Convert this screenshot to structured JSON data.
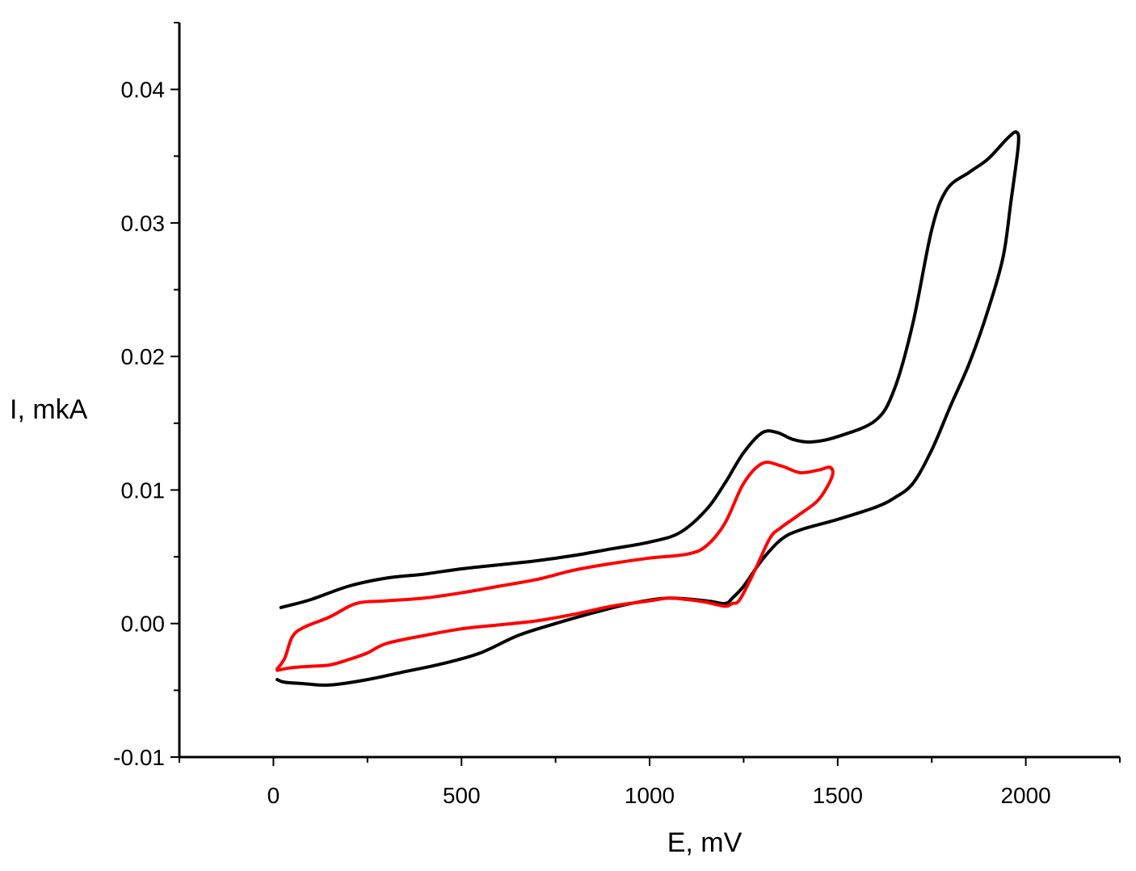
{
  "chart_data": {
    "type": "line",
    "title": "",
    "xlabel": "E, mV",
    "ylabel": "I, mkA",
    "xlim": [
      -250,
      2250
    ],
    "ylim": [
      -0.01,
      0.045
    ],
    "x_ticks": [
      0,
      500,
      1000,
      1500,
      2000
    ],
    "x_tick_labels": [
      "0",
      "500",
      "1000",
      "1500",
      "2000"
    ],
    "y_ticks": [
      -0.01,
      0.0,
      0.01,
      0.02,
      0.03,
      0.04
    ],
    "y_tick_labels": [
      "-0.01",
      "0.00",
      "0.01",
      "0.02",
      "0.03",
      "0.04"
    ],
    "grid": false,
    "legend": "none",
    "series": [
      {
        "color": "#000000",
        "points": [
          [
            20,
            0.0012
          ],
          [
            100,
            0.0018
          ],
          [
            200,
            0.0028
          ],
          [
            300,
            0.0034
          ],
          [
            400,
            0.0037
          ],
          [
            500,
            0.0041
          ],
          [
            600,
            0.0044
          ],
          [
            700,
            0.0047
          ],
          [
            800,
            0.0051
          ],
          [
            900,
            0.0056
          ],
          [
            1000,
            0.0061
          ],
          [
            1080,
            0.0068
          ],
          [
            1150,
            0.0085
          ],
          [
            1200,
            0.0105
          ],
          [
            1250,
            0.0128
          ],
          [
            1300,
            0.0143
          ],
          [
            1340,
            0.0143
          ],
          [
            1380,
            0.0138
          ],
          [
            1430,
            0.0136
          ],
          [
            1500,
            0.014
          ],
          [
            1600,
            0.0152
          ],
          [
            1650,
            0.0175
          ],
          [
            1700,
            0.0225
          ],
          [
            1750,
            0.0295
          ],
          [
            1790,
            0.0325
          ],
          [
            1850,
            0.0338
          ],
          [
            1900,
            0.0348
          ],
          [
            1950,
            0.0363
          ],
          [
            1975,
            0.0368
          ],
          [
            1980,
            0.0358
          ],
          [
            1960,
            0.0315
          ],
          [
            1940,
            0.0275
          ],
          [
            1900,
            0.0235
          ],
          [
            1850,
            0.0195
          ],
          [
            1800,
            0.0163
          ],
          [
            1750,
            0.013
          ],
          [
            1700,
            0.0105
          ],
          [
            1650,
            0.0094
          ],
          [
            1600,
            0.0087
          ],
          [
            1500,
            0.0078
          ],
          [
            1400,
            0.007
          ],
          [
            1350,
            0.0063
          ],
          [
            1300,
            0.0048
          ],
          [
            1250,
            0.0028
          ],
          [
            1220,
            0.0019
          ],
          [
            1200,
            0.0015
          ],
          [
            1150,
            0.0017
          ],
          [
            1050,
            0.0019
          ],
          [
            950,
            0.0015
          ],
          [
            850,
            0.0008
          ],
          [
            750,
            0.0
          ],
          [
            650,
            -0.0009
          ],
          [
            550,
            -0.0022
          ],
          [
            450,
            -0.003
          ],
          [
            350,
            -0.0036
          ],
          [
            250,
            -0.0042
          ],
          [
            150,
            -0.0046
          ],
          [
            80,
            -0.0045
          ],
          [
            30,
            -0.0044
          ],
          [
            10,
            -0.0042
          ]
        ]
      },
      {
        "color": "#ff0000",
        "points": [
          [
            10,
            -0.0034
          ],
          [
            30,
            -0.0026
          ],
          [
            50,
            -0.001
          ],
          [
            80,
            -0.0003
          ],
          [
            150,
            0.0005
          ],
          [
            220,
            0.0015
          ],
          [
            300,
            0.0017
          ],
          [
            400,
            0.0019
          ],
          [
            500,
            0.0023
          ],
          [
            600,
            0.0028
          ],
          [
            700,
            0.0033
          ],
          [
            800,
            0.004
          ],
          [
            900,
            0.0045
          ],
          [
            1000,
            0.0049
          ],
          [
            1100,
            0.0052
          ],
          [
            1150,
            0.0058
          ],
          [
            1200,
            0.0075
          ],
          [
            1250,
            0.0105
          ],
          [
            1300,
            0.012
          ],
          [
            1350,
            0.0118
          ],
          [
            1400,
            0.0113
          ],
          [
            1450,
            0.0115
          ],
          [
            1480,
            0.0117
          ],
          [
            1485,
            0.011
          ],
          [
            1450,
            0.0093
          ],
          [
            1400,
            0.0082
          ],
          [
            1350,
            0.0072
          ],
          [
            1320,
            0.0064
          ],
          [
            1280,
            0.004
          ],
          [
            1240,
            0.0018
          ],
          [
            1220,
            0.0015
          ],
          [
            1200,
            0.0013
          ],
          [
            1150,
            0.0016
          ],
          [
            1100,
            0.0018
          ],
          [
            1050,
            0.0019
          ],
          [
            1000,
            0.0017
          ],
          [
            900,
            0.0013
          ],
          [
            800,
            0.0007
          ],
          [
            700,
            0.0002
          ],
          [
            600,
            -0.0001
          ],
          [
            500,
            -0.0004
          ],
          [
            400,
            -0.0009
          ],
          [
            300,
            -0.0015
          ],
          [
            250,
            -0.0022
          ],
          [
            200,
            -0.0027
          ],
          [
            150,
            -0.0031
          ],
          [
            100,
            -0.0032
          ],
          [
            50,
            -0.0033
          ],
          [
            10,
            -0.0035
          ]
        ]
      }
    ]
  }
}
